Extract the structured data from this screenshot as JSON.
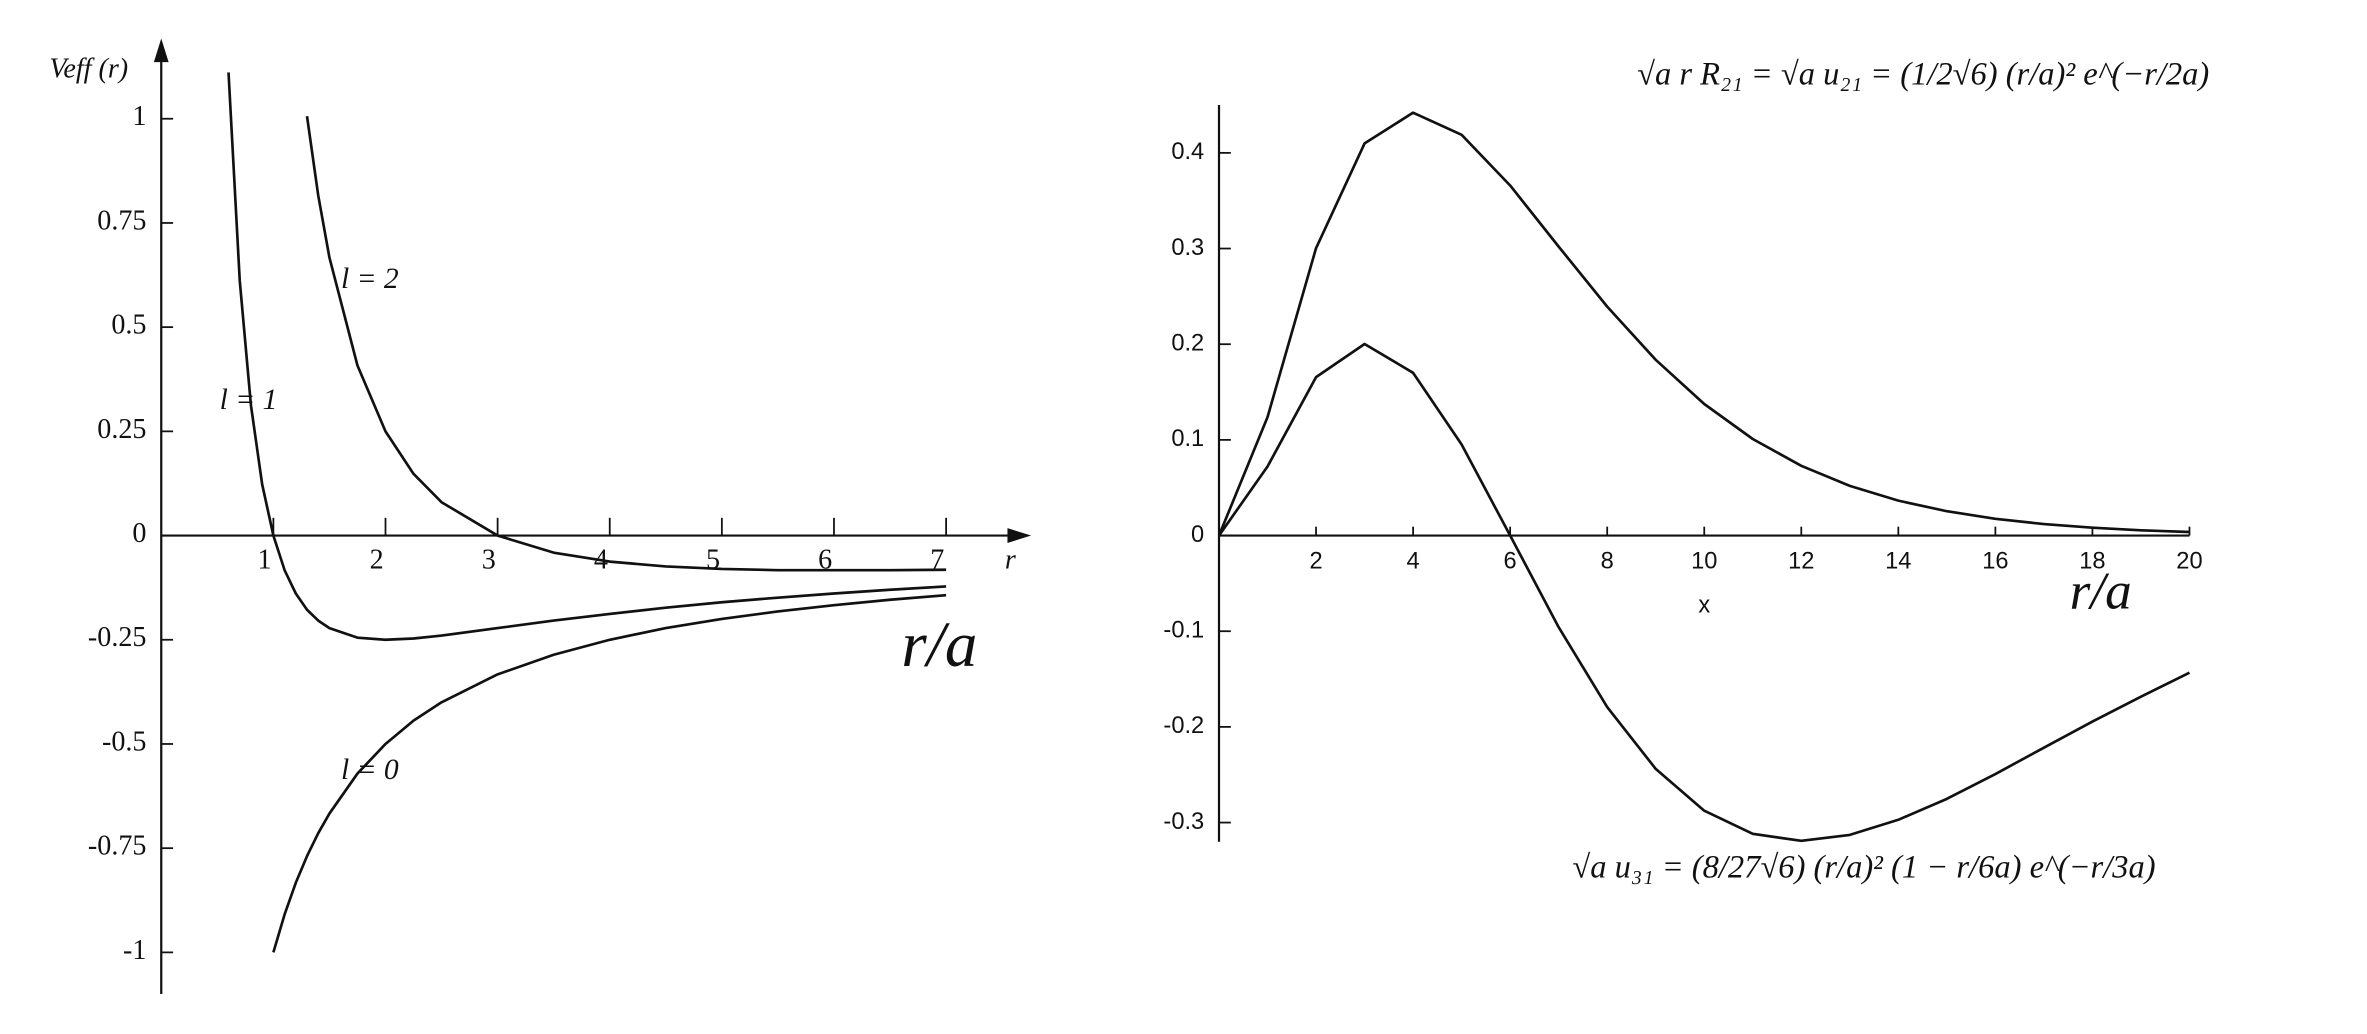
{
  "chart_data": [
    {
      "type": "line",
      "y_label": "Veff (r)",
      "x_label": "r",
      "annotations": [
        "l = 2",
        "l = 1",
        "l = 0",
        "r/a"
      ],
      "x": [
        0.6,
        0.7,
        0.8,
        0.9,
        1,
        1.1,
        1.2,
        1.3,
        1.4,
        1.5,
        1.75,
        2,
        2.25,
        2.5,
        3,
        3.5,
        4,
        4.5,
        5,
        5.5,
        6,
        6.5,
        7
      ],
      "series": [
        {
          "name": "l = 0",
          "color": "#111111",
          "values": [
            null,
            null,
            null,
            null,
            -1,
            -0.909,
            -0.833,
            -0.769,
            -0.714,
            -0.667,
            -0.571,
            -0.5,
            -0.444,
            -0.4,
            -0.333,
            -0.286,
            -0.25,
            -0.222,
            -0.2,
            -0.182,
            -0.167,
            -0.154,
            -0.143
          ]
        },
        {
          "name": "l = 1",
          "color": "#111111",
          "values": [
            1.111,
            0.612,
            0.3125,
            0.123,
            0,
            -0.083,
            -0.139,
            -0.178,
            -0.204,
            -0.222,
            -0.245,
            -0.25,
            -0.247,
            -0.24,
            -0.222,
            -0.204,
            -0.188,
            -0.173,
            -0.16,
            -0.149,
            -0.139,
            -0.13,
            -0.122
          ]
        },
        {
          "name": "l = 2",
          "color": "#111111",
          "values": [
            null,
            null,
            null,
            null,
            null,
            null,
            null,
            1.006,
            0.816,
            0.667,
            0.408,
            0.25,
            0.148,
            0.08,
            0,
            -0.041,
            -0.0625,
            -0.074,
            -0.08,
            -0.083,
            -0.083,
            -0.083,
            -0.082
          ]
        }
      ],
      "xlim": [
        0,
        7.6
      ],
      "ylim": [
        -1.1,
        1.15
      ],
      "xticks": [
        1,
        2,
        3,
        4,
        5,
        6,
        7
      ],
      "yticks": [
        -1,
        -0.75,
        -0.5,
        -0.25,
        0,
        0.25,
        0.5,
        0.75,
        1
      ]
    },
    {
      "type": "line",
      "x_label": "x",
      "annotations": [
        "√a r R₂₁ = √a u₂₁ = (1/2√6) (r/a)² e^(−r/2a)",
        "√a u₃₁ = (8/27√6) (r/a)² (1 − r/6a) e^(−r/3a)",
        "r/a"
      ],
      "x": [
        0,
        1,
        2,
        3,
        4,
        5,
        6,
        7,
        8,
        9,
        10,
        11,
        12,
        13,
        14,
        15,
        16,
        17,
        18,
        19,
        20
      ],
      "series": [
        {
          "name": "u21",
          "color": "#111111",
          "values": [
            0,
            0.1238,
            0.3004,
            0.4099,
            0.442,
            0.4189,
            0.3659,
            0.302,
            0.2393,
            0.1837,
            0.1375,
            0.1009,
            0.0729,
            0.0519,
            0.0365,
            0.0254,
            0.0175,
            0.012,
            0.0082,
            0.0055,
            0.0037
          ]
        },
        {
          "name": "u31",
          "color": "#111111",
          "values": [
            0,
            0.0722,
            0.1656,
            0.2002,
            0.1701,
            0.0952,
            0,
            -0.0958,
            -0.1793,
            -0.2439,
            -0.2876,
            -0.3118,
            -0.3191,
            -0.3129,
            -0.2971,
            -0.2752,
            -0.2493,
            -0.2217,
            -0.1944,
            -0.1684,
            -0.1434
          ]
        }
      ],
      "xlim": [
        0,
        20
      ],
      "ylim": [
        -0.32,
        0.45
      ],
      "xticks": [
        2,
        4,
        6,
        8,
        10,
        12,
        14,
        16,
        18,
        20
      ],
      "yticks": [
        -0.3,
        -0.2,
        -0.1,
        0,
        0.1,
        0.2,
        0.3,
        0.4
      ]
    }
  ]
}
